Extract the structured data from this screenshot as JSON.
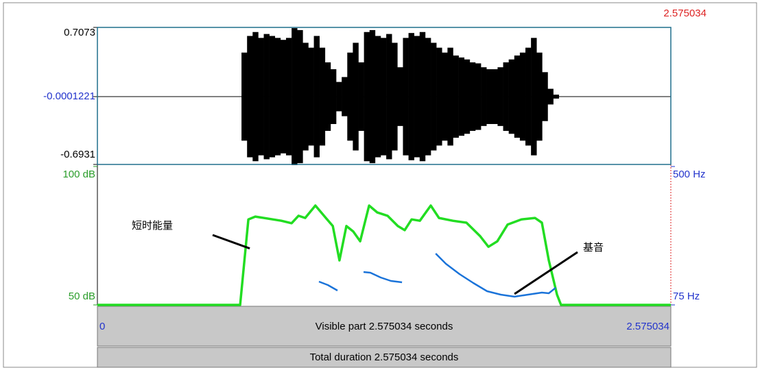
{
  "cursor_time": 2.575034,
  "waveform": {
    "ylim": [
      -0.6931,
      0.7073
    ],
    "yticks": [
      0.7073,
      -0.0001221,
      -0.6931
    ],
    "color": "#000000",
    "t": [
      0.66,
      0.685,
      0.71,
      0.735,
      0.76,
      0.785,
      0.81,
      0.835,
      0.86,
      0.885,
      0.91,
      0.935,
      0.96,
      0.985,
      1.01,
      1.035,
      1.06,
      1.085,
      1.11,
      1.135,
      1.16,
      1.185,
      1.21,
      1.235,
      1.26,
      1.285,
      1.31,
      1.335,
      1.36,
      1.385,
      1.41,
      1.435,
      1.46,
      1.485,
      1.51,
      1.535,
      1.56,
      1.585,
      1.61,
      1.635,
      1.66,
      1.685,
      1.71,
      1.735,
      1.76,
      1.785,
      1.81,
      1.835,
      1.86,
      1.885,
      1.91,
      1.935,
      1.96,
      1.985,
      2.01,
      2.035,
      2.06
    ],
    "amplitude": [
      0.45,
      0.62,
      0.66,
      0.6,
      0.64,
      0.62,
      0.6,
      0.58,
      0.6,
      0.7,
      0.68,
      0.55,
      0.5,
      0.62,
      0.5,
      0.35,
      0.28,
      0.15,
      0.2,
      0.45,
      0.55,
      0.35,
      0.66,
      0.68,
      0.62,
      0.6,
      0.64,
      0.55,
      0.3,
      0.6,
      0.65,
      0.62,
      0.66,
      0.6,
      0.55,
      0.5,
      0.45,
      0.5,
      0.42,
      0.4,
      0.38,
      0.35,
      0.34,
      0.3,
      0.28,
      0.28,
      0.3,
      0.35,
      0.38,
      0.42,
      0.45,
      0.5,
      0.6,
      0.45,
      0.25,
      0.08,
      0.02
    ]
  },
  "intensity": {
    "color": "#22dd22",
    "ylim": [
      50,
      100
    ],
    "yticks": [
      {
        "value": 100,
        "label": "100 dB"
      },
      {
        "value": 50,
        "label": "50 dB"
      }
    ],
    "x": [
      0,
      0.641,
      0.678,
      0.709,
      0.826,
      0.872,
      0.903,
      0.933,
      0.979,
      1.026,
      1.057,
      1.087,
      1.118,
      1.149,
      1.18,
      1.22,
      1.257,
      1.303,
      1.349,
      1.38,
      1.411,
      1.448,
      1.497,
      1.534,
      1.596,
      1.657,
      1.719,
      1.756,
      1.796,
      1.842,
      1.904,
      1.965,
      1.996,
      2.027,
      2.064,
      2.082,
      2.575
    ],
    "values": [
      50,
      50,
      80.9,
      81.9,
      80.4,
      79.5,
      82.2,
      81.4,
      85.9,
      81.4,
      78.5,
      66.1,
      78.5,
      76.5,
      73.0,
      85.9,
      83.4,
      82.2,
      78.5,
      77.0,
      80.9,
      80.4,
      85.9,
      81.4,
      80.4,
      79.7,
      74.8,
      71.0,
      73.0,
      79.0,
      80.9,
      81.4,
      79.7,
      66.1,
      53.7,
      50,
      50
    ]
  },
  "pitch": {
    "color": "#1a73d9",
    "ylim": [
      75,
      500
    ],
    "yticks": [
      {
        "value": 500,
        "label": "500 Hz"
      },
      {
        "value": 75,
        "label": "75 Hz"
      }
    ],
    "x": [
      0.995,
      1.035,
      1.078,
      1.13,
      1.195,
      1.226,
      1.272,
      1.318,
      1.368,
      1.44,
      1.519,
      1.565,
      1.626,
      1.688,
      1.75,
      1.811,
      1.873,
      1.934,
      1.996,
      2.027,
      2.058
    ],
    "values": [
      146.5,
      136.0,
      119.2,
      null,
      176.0,
      173.9,
      159.2,
      148.6,
      144.4,
      null,
      232.8,
      201.2,
      169.7,
      142.3,
      117.1,
      106.6,
      100.2,
      106.6,
      112.9,
      110.8,
      127.6
    ]
  },
  "time_axis": {
    "xlim": [
      0,
      2.575034
    ],
    "start": 0,
    "end": 2.575034,
    "visible_label": "Visible part 2.575034 seconds",
    "total_label": "Total duration 2.575034 seconds"
  },
  "annotations": [
    {
      "text": "短时能量",
      "x": 0.66,
      "target": "intensity"
    },
    {
      "text": "基音",
      "x": 1.87,
      "target": "pitch"
    }
  ]
}
